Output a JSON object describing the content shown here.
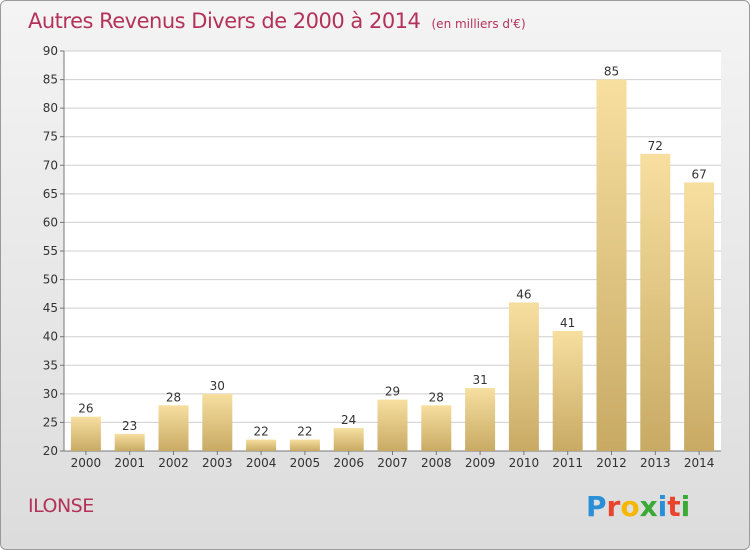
{
  "chart_data": {
    "type": "bar",
    "title": "Autres Revenus Divers de 2000 à 2014",
    "unit": "(en milliers d'€)",
    "categories": [
      "2000",
      "2001",
      "2002",
      "2003",
      "2004",
      "2005",
      "2006",
      "2007",
      "2008",
      "2009",
      "2010",
      "2011",
      "2012",
      "2013",
      "2014"
    ],
    "values": [
      26,
      23,
      28,
      30,
      22,
      22,
      24,
      29,
      28,
      31,
      46,
      41,
      85,
      72,
      67
    ],
    "ylim": [
      20,
      90
    ],
    "yticks": [
      20,
      25,
      30,
      35,
      40,
      45,
      50,
      55,
      60,
      65,
      70,
      75,
      80,
      85,
      90
    ],
    "grid": true,
    "xlabel": "",
    "ylabel": ""
  },
  "place_name": "ILONSE",
  "brand": {
    "letters": [
      "P",
      "r",
      "o",
      "x",
      "i",
      "t",
      "i"
    ],
    "colors": [
      "#2a8fd6",
      "#e8452c",
      "#f5b700",
      "#3aa935",
      "#2a8fd6",
      "#e8452c",
      "#3aa935"
    ]
  },
  "colors": {
    "bar_top": "#f7dfa0",
    "bar_bottom": "#c8aa64",
    "grid": "#cfcfcf",
    "title": "#b4325a"
  }
}
